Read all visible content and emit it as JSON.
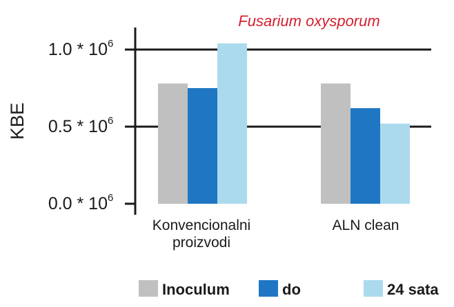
{
  "chart_data": {
    "type": "bar",
    "title": "Fusarium oxysporum",
    "ylabel": "KBE",
    "xlabel": "",
    "categories": [
      "Konvencionalni\nproizvodi",
      "ALN clean"
    ],
    "series": [
      {
        "name": "Inoculum",
        "color": "#c0c0c0",
        "values": [
          0.78,
          0.78
        ]
      },
      {
        "name": "do",
        "color": "#1f77c4",
        "values": [
          0.75,
          0.62
        ]
      },
      {
        "name": "24 sata",
        "color": "#acdaed",
        "values": [
          1.04,
          0.52
        ]
      }
    ],
    "ylim": [
      0,
      1.0
    ],
    "y_ticks": [
      {
        "value": 0.0,
        "base": "0.0 * 10",
        "exp": "6"
      },
      {
        "value": 0.5,
        "base": "0.5 * 10",
        "exp": "6"
      },
      {
        "value": 1.0,
        "base": "1.0 * 10",
        "exp": "6"
      }
    ],
    "unit_multiplier": "10^6",
    "grid": true,
    "legend_position": "bottom"
  }
}
